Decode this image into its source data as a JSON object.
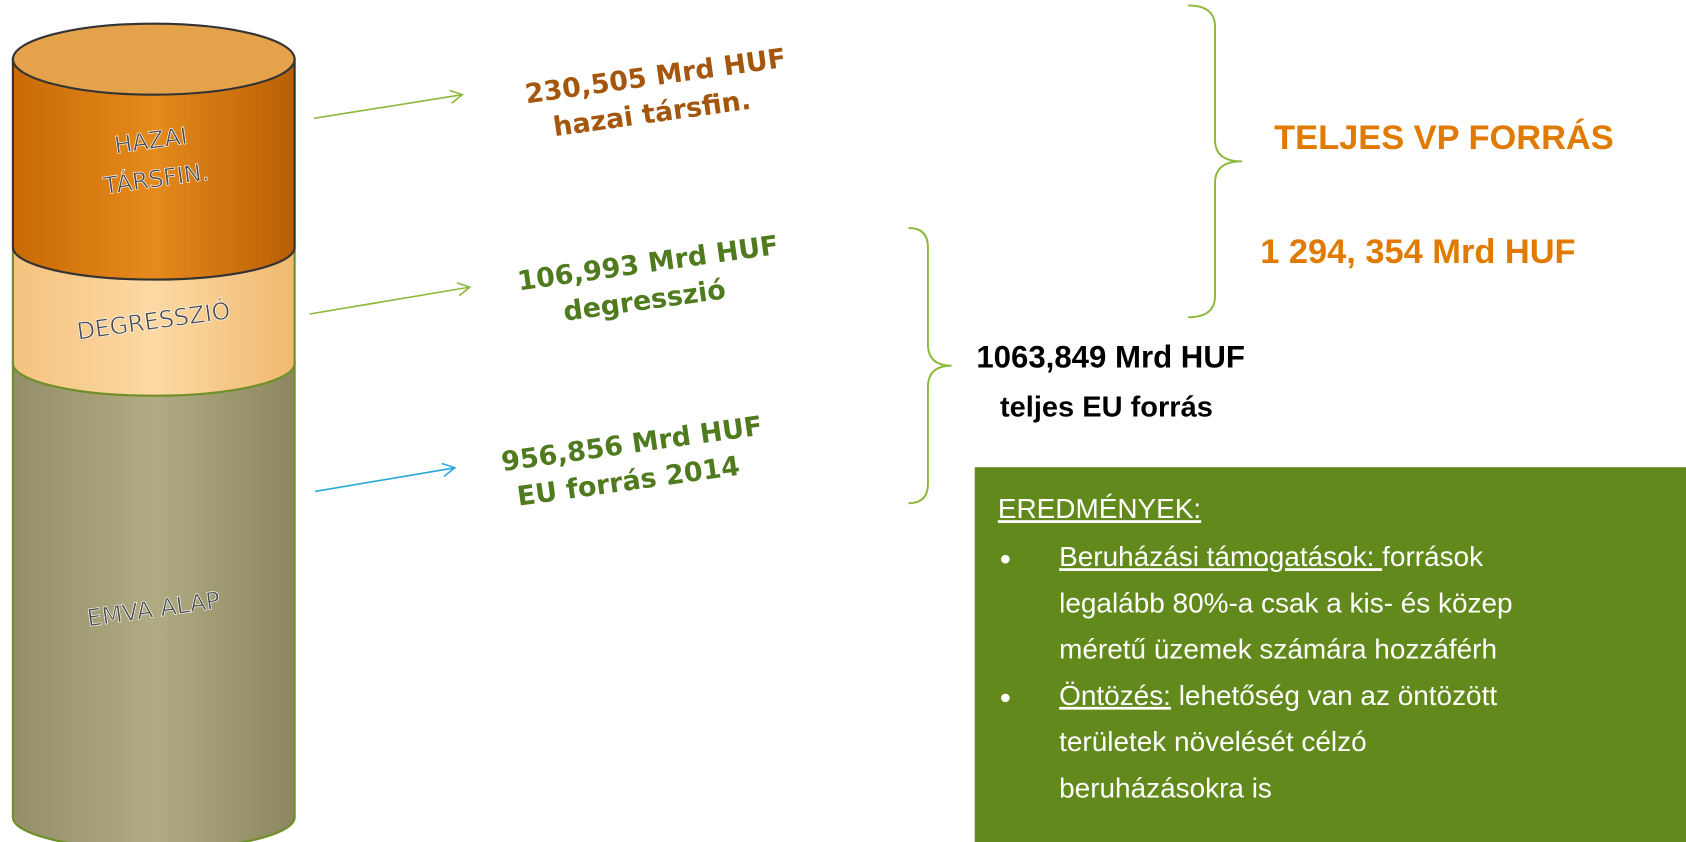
{
  "cylinder": {
    "segments": [
      {
        "lines": [
          "HAZAI",
          "TÁRSFIN."
        ]
      },
      {
        "lines": [
          "DEGRESSZIÓ"
        ]
      },
      {
        "lines": [
          "EMVA ALAP"
        ]
      }
    ]
  },
  "amounts": [
    {
      "amount": "230,505 Mrd HUF",
      "desc": "hazai társfin."
    },
    {
      "amount": "106,993 Mrd HUF",
      "desc": "degresszió"
    },
    {
      "amount": "956,856 Mrd HUF",
      "desc": "EU forrás 2014"
    }
  ],
  "eu_total": {
    "amount": "1063,849 Mrd HUF",
    "desc": "teljes EU forrás"
  },
  "total": {
    "title": "TELJES VP FORRÁS",
    "amount": "1 294, 354 Mrd HUF"
  },
  "results": {
    "heading": "EREDMÉNYEK:",
    "items": [
      {
        "term": "Beruházási támogatások: ",
        "lines": [
          "források",
          "legalább 80%-a csak a kis- és közep",
          "méretű üzemek számára hozzáférh"
        ]
      },
      {
        "term": "Öntözés:",
        "lines": [
          " lehetőség van az öntözött",
          "területek növelését célzó",
          "beruházásokra is"
        ]
      }
    ]
  }
}
